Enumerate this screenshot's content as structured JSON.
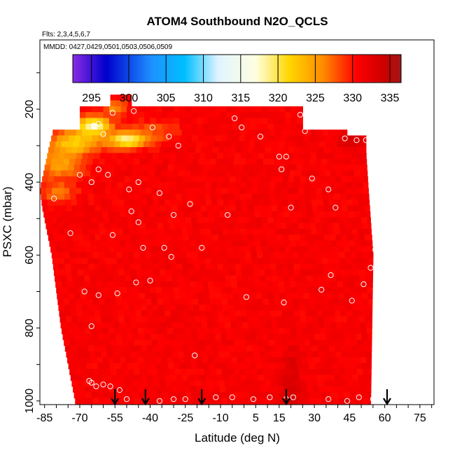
{
  "chart_data": {
    "type": "heatmap",
    "title": "ATOM4 Southbound N2O_QCLS",
    "subtitle_flights": "Flts: 2,3,4,5,6,7",
    "subtitle_dates": "MMDD: 0427,0429,0501,0503,0506,0509",
    "xlabel": "Latitude (deg N)",
    "ylabel": "PSXC (mbar)",
    "xlim": [
      -87,
      81
    ],
    "ylim": [
      1010,
      10
    ],
    "x_ticks": [
      -85,
      -70,
      -55,
      -40,
      -25,
      -10,
      5,
      15,
      30,
      45,
      60,
      75
    ],
    "x_ticks_minor_step": 5,
    "y_ticks": [
      200,
      400,
      600,
      800,
      1000
    ],
    "colorbar": {
      "range": [
        292.5,
        336.5
      ],
      "ticks": [
        295,
        300,
        305,
        310,
        315,
        320,
        325,
        330,
        335
      ],
      "colors": [
        "#8a2be2",
        "#0000cd",
        "#1e90ff",
        "#00bfff",
        "#e0f4ff",
        "#ffffe0",
        "#ffd700",
        "#ff8c00",
        "#ff0000",
        "#c80000",
        "#a01818"
      ],
      "color_positions": [
        292.5,
        297,
        303,
        307.5,
        312,
        317,
        321.5,
        326,
        330.5,
        334.5,
        336.5
      ]
    },
    "field": {
      "base_value": 331.0,
      "lat_edges": [
        -87,
        52
      ],
      "pressure_top": 160,
      "pressure_bottom": 1000,
      "boundary_right": [
        [
          250,
          25
        ],
        [
          270,
          52
        ],
        [
          320,
          52
        ],
        [
          420,
          53
        ],
        [
          600,
          55
        ],
        [
          1000,
          54
        ]
      ],
      "boundary_left": [
        [
          250,
          -81
        ],
        [
          300,
          -83
        ],
        [
          420,
          -87
        ],
        [
          470,
          -86
        ],
        [
          600,
          -82
        ],
        [
          800,
          -78
        ],
        [
          1000,
          -72
        ]
      ],
      "anomalies": [
        {
          "lat": -64,
          "p": 245,
          "sigma_lat": 7,
          "sigma_p": 25,
          "value": 318
        },
        {
          "lat": -50,
          "p": 285,
          "sigma_lat": 8,
          "sigma_p": 22,
          "value": 319
        },
        {
          "lat": -72,
          "p": 290,
          "sigma_lat": 10,
          "sigma_p": 30,
          "value": 322
        },
        {
          "lat": -78,
          "p": 350,
          "sigma_lat": 10,
          "sigma_p": 40,
          "value": 325
        },
        {
          "lat": -55,
          "p": 195,
          "sigma_lat": 5,
          "sigma_p": 20,
          "value": 326
        },
        {
          "lat": -38,
          "p": 260,
          "sigma_lat": 10,
          "sigma_p": 30,
          "value": 328
        },
        {
          "lat": -80,
          "p": 430,
          "sigma_lat": 8,
          "sigma_p": 30,
          "value": 327
        },
        {
          "lat": 20,
          "p": 950,
          "sigma_lat": 4,
          "sigma_p": 90,
          "value": 333.5
        },
        {
          "lat": 45,
          "p": 290,
          "sigma_lat": 6,
          "sigma_p": 25,
          "value": 333.5
        }
      ]
    },
    "points": [
      [
        -64,
        245
      ],
      [
        -62,
        240
      ],
      [
        -56,
        210
      ],
      [
        -47,
        205
      ],
      [
        -60,
        268
      ],
      [
        -39,
        250
      ],
      [
        -32,
        275
      ],
      [
        -28,
        300
      ],
      [
        -70,
        380
      ],
      [
        -62,
        365
      ],
      [
        -65,
        400
      ],
      [
        -58,
        380
      ],
      [
        -49,
        420
      ],
      [
        -45,
        400
      ],
      [
        -36,
        430
      ],
      [
        -23,
        460
      ],
      [
        -48,
        480
      ],
      [
        -45,
        510
      ],
      [
        -30,
        490
      ],
      [
        -7,
        490
      ],
      [
        -81,
        445
      ],
      [
        -74,
        540
      ],
      [
        -56,
        545
      ],
      [
        -43,
        580
      ],
      [
        -34,
        580
      ],
      [
        -31,
        605
      ],
      [
        -18,
        580
      ],
      [
        -21,
        875
      ],
      [
        -46,
        675
      ],
      [
        -40,
        670
      ],
      [
        -68,
        700
      ],
      [
        -62,
        710
      ],
      [
        -54,
        705
      ],
      [
        -65,
        795
      ],
      [
        -66,
        945
      ],
      [
        -63,
        960
      ],
      [
        -60,
        955
      ],
      [
        -57,
        960
      ],
      [
        -53,
        970
      ],
      [
        -65,
        950
      ],
      [
        -50,
        995
      ],
      [
        -36,
        1000
      ],
      [
        -30,
        995
      ],
      [
        -25,
        995
      ],
      [
        -12,
        990
      ],
      [
        -5,
        990
      ],
      [
        4,
        995
      ],
      [
        11,
        990
      ],
      [
        18,
        995
      ],
      [
        21,
        990
      ],
      [
        36,
        995
      ],
      [
        44,
        1000
      ],
      [
        49,
        990
      ],
      [
        55,
        995
      ],
      [
        -4,
        225
      ],
      [
        -1,
        250
      ],
      [
        7,
        275
      ],
      [
        15,
        330
      ],
      [
        18,
        330
      ],
      [
        16,
        365
      ],
      [
        20,
        470
      ],
      [
        29,
        390
      ],
      [
        36,
        420
      ],
      [
        43,
        280
      ],
      [
        48,
        285
      ],
      [
        52,
        285
      ],
      [
        39,
        470
      ],
      [
        37,
        655
      ],
      [
        33,
        695
      ],
      [
        46,
        725
      ],
      [
        51,
        680
      ],
      [
        54,
        635
      ],
      [
        56,
        585
      ],
      [
        1,
        715
      ],
      [
        17,
        730
      ],
      [
        24,
        215
      ],
      [
        26,
        260
      ]
    ],
    "arrows_lat": [
      -55,
      -42,
      -18,
      18,
      61
    ]
  }
}
